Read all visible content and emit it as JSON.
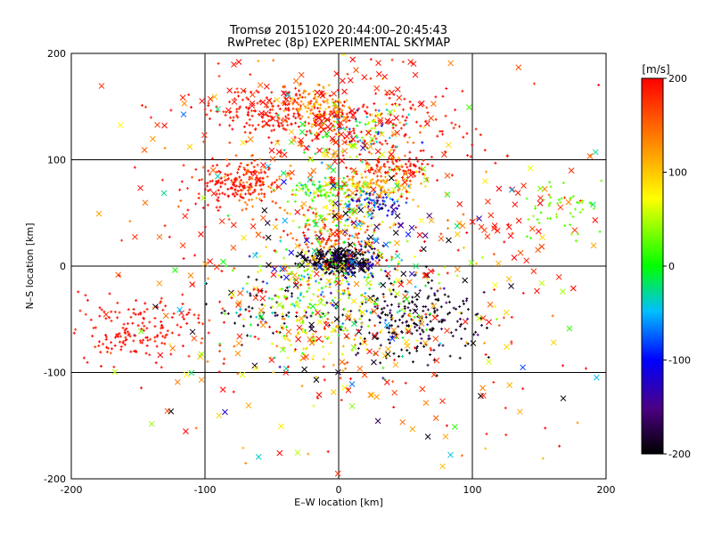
{
  "chart_data": {
    "type": "scatter",
    "title": "Tromsø 20151020 20:44:00–20:45:43",
    "subtitle": "RwPretec (8p) EXPERIMENTAL SKYMAP",
    "xlabel": "E–W location [km]",
    "ylabel": "N–S location [km]",
    "xlim": [
      -200,
      200
    ],
    "ylim": [
      -200,
      200
    ],
    "xticks": [
      -200,
      -100,
      0,
      100,
      200
    ],
    "yticks": [
      -200,
      -100,
      0,
      100,
      200
    ],
    "grid": true,
    "colorbar": {
      "label": "[m/s]",
      "range": [
        -200,
        200
      ],
      "ticks": [
        200,
        100,
        0,
        -100,
        -200
      ],
      "colormap": [
        "#000000",
        "#4b0082",
        "#0000ff",
        "#00bfff",
        "#00ff00",
        "#ffff00",
        "#ff7f00",
        "#ff0000"
      ]
    },
    "marker_types": [
      "plus",
      "cross"
    ],
    "clusters": [
      {
        "x": 0,
        "y": 5,
        "sx": 12,
        "sy": 6,
        "n": 260,
        "v": -195,
        "vs": 15,
        "m": "plus"
      },
      {
        "x": 0,
        "y": 3,
        "sx": 14,
        "sy": 7,
        "n": 45,
        "v": -190,
        "vs": 20,
        "m": "cross"
      },
      {
        "x": 60,
        "y": -50,
        "sx": 22,
        "sy": 18,
        "n": 220,
        "v": -190,
        "vs": 20,
        "m": "plus"
      },
      {
        "x": -50,
        "y": -40,
        "sx": 30,
        "sy": 15,
        "n": 70,
        "v": -185,
        "vs": 25,
        "m": "plus"
      },
      {
        "x": -150,
        "y": -60,
        "sx": 25,
        "sy": 15,
        "n": 160,
        "v": 195,
        "vs": 10,
        "m": "plus"
      },
      {
        "x": -45,
        "y": 145,
        "sx": 30,
        "sy": 12,
        "n": 230,
        "v": 190,
        "vs": 15,
        "m": "plus"
      },
      {
        "x": 30,
        "y": 130,
        "sx": 35,
        "sy": 20,
        "n": 140,
        "v": 195,
        "vs": 10,
        "m": "plus"
      },
      {
        "x": -65,
        "y": 80,
        "sx": 12,
        "sy": 10,
        "n": 120,
        "v": 165,
        "vs": 30,
        "m": "plus"
      },
      {
        "x": -85,
        "y": 78,
        "sx": 15,
        "sy": 10,
        "n": 90,
        "v": 195,
        "vs": 10,
        "m": "plus"
      },
      {
        "x": 40,
        "y": 92,
        "sx": 15,
        "sy": 5,
        "n": 90,
        "v": 190,
        "vs": 20,
        "m": "plus"
      },
      {
        "x": 25,
        "y": 75,
        "sx": 20,
        "sy": 8,
        "n": 130,
        "v": 110,
        "vs": 30,
        "m": "plus"
      },
      {
        "x": 25,
        "y": 60,
        "sx": 12,
        "sy": 6,
        "n": 80,
        "v": -110,
        "vs": 40,
        "m": "plus"
      },
      {
        "x": -15,
        "y": 150,
        "sx": 10,
        "sy": 8,
        "n": 100,
        "v": 120,
        "vs": 15,
        "m": "plus"
      },
      {
        "x": 15,
        "y": 125,
        "sx": 20,
        "sy": 15,
        "n": 110,
        "v": 30,
        "vs": 80,
        "m": "plus"
      },
      {
        "x": -10,
        "y": 72,
        "sx": 15,
        "sy": 5,
        "n": 90,
        "v": 10,
        "vs": 30,
        "m": "plus"
      },
      {
        "x": -5,
        "y": 40,
        "sx": 20,
        "sy": 12,
        "n": 130,
        "v": 90,
        "vs": 80,
        "m": "plus"
      },
      {
        "x": -5,
        "y": 25,
        "sx": 15,
        "sy": 10,
        "n": 70,
        "v": 160,
        "vs": 30,
        "m": "plus"
      },
      {
        "x": 0,
        "y": -30,
        "sx": 45,
        "sy": 30,
        "n": 240,
        "v": 20,
        "vs": 60,
        "m": "plus"
      },
      {
        "x": -25,
        "y": -10,
        "sx": 20,
        "sy": 15,
        "n": 80,
        "v": 60,
        "vs": 40,
        "m": "plus"
      },
      {
        "x": -20,
        "y": -70,
        "sx": 20,
        "sy": 15,
        "n": 60,
        "v": 90,
        "vs": 40,
        "m": "plus"
      },
      {
        "x": 20,
        "y": 10,
        "sx": 10,
        "sy": 8,
        "n": 40,
        "v": -120,
        "vs": 30,
        "m": "plus"
      },
      {
        "x": 170,
        "y": 55,
        "sx": 15,
        "sy": 12,
        "n": 50,
        "v": 30,
        "vs": 8,
        "m": "plus"
      },
      {
        "x": 150,
        "y": 40,
        "sx": 30,
        "sy": 25,
        "n": 30,
        "v": 190,
        "vs": 15,
        "m": "cross"
      },
      {
        "x": -20,
        "y": 140,
        "sx": 40,
        "sy": 25,
        "n": 80,
        "v": 195,
        "vs": 10,
        "m": "cross"
      },
      {
        "x": 0,
        "y": 100,
        "sx": 40,
        "sy": 40,
        "n": 60,
        "v": 120,
        "vs": 80,
        "m": "cross"
      },
      {
        "x": 10,
        "y": 30,
        "sx": 40,
        "sy": 25,
        "n": 40,
        "v": -150,
        "vs": 60,
        "m": "cross"
      },
      {
        "x": 20,
        "y": -60,
        "sx": 45,
        "sy": 35,
        "n": 45,
        "v": 120,
        "vs": 80,
        "m": "cross"
      },
      {
        "x": 0,
        "y": -50,
        "sx": 60,
        "sy": 50,
        "n": 40,
        "v": -195,
        "vs": 10,
        "m": "cross"
      },
      {
        "x": 0,
        "y": 0,
        "sx": 110,
        "sy": 110,
        "n": 220,
        "v": 150,
        "vs": 60,
        "m": "cross"
      },
      {
        "x": 0,
        "y": 0,
        "sx": 110,
        "sy": 110,
        "n": 70,
        "v": 30,
        "vs": 100,
        "m": "cross"
      },
      {
        "x": 0,
        "y": 0,
        "sx": 110,
        "sy": 110,
        "n": 260,
        "v": 180,
        "vs": 40,
        "m": "plus"
      }
    ]
  }
}
